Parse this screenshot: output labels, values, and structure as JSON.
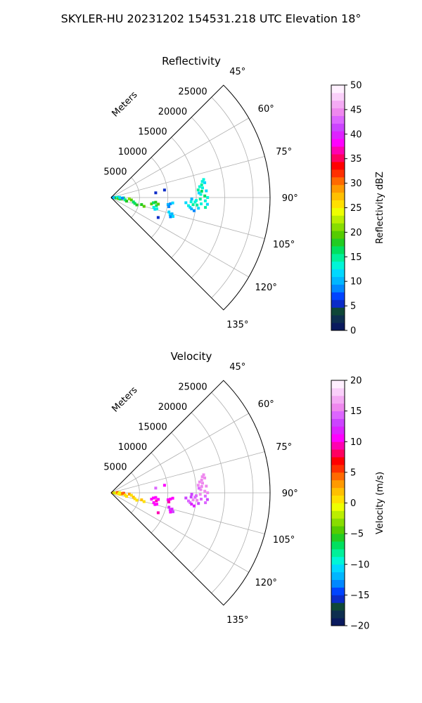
{
  "figure": {
    "suptitle": "SKYLER-HU  20231202  154531.218 UTC Elevation 18°"
  },
  "chart_data": [
    {
      "type": "polar-ppi",
      "title": "Reflectivity",
      "range_label": "Meters",
      "range_ticks": [
        5000,
        10000,
        15000,
        20000,
        25000
      ],
      "range_max": 28000,
      "azimuth_ticks": [
        "45°",
        "60°",
        "75°",
        "90°",
        "105°",
        "120°",
        "135°"
      ],
      "azimuth_range": [
        45,
        135
      ],
      "grid": true,
      "colorbar": {
        "label": "Reflectivity dBZ",
        "min": 0,
        "max": 50,
        "tick_labels": [
          "0",
          "5",
          "10",
          "15",
          "20",
          "25",
          "30",
          "35",
          "40",
          "45",
          "50"
        ],
        "colors": [
          "#0a1a5e",
          "#0e2f4f",
          "#0f4738",
          "#0b2bc8",
          "#0044ff",
          "#0088ff",
          "#00b6ff",
          "#00d8ff",
          "#00f5d8",
          "#00f09a",
          "#00e060",
          "#22cc22",
          "#55cc00",
          "#88dd00",
          "#bbee00",
          "#eeff00",
          "#ffe000",
          "#ffc000",
          "#ff9a00",
          "#ff6a00",
          "#ff3000",
          "#ff0000",
          "#ff0060",
          "#ff00b0",
          "#ff00ff",
          "#dd22ff",
          "#cc44ff",
          "#dd66ff",
          "#ee88ee",
          "#f4aaf4",
          "#fad0fa",
          "#fff0ff"
        ]
      },
      "echoes": [
        {
          "az": 90,
          "r": 300,
          "v": 8
        },
        {
          "az": 88,
          "r": 500,
          "v": 12
        },
        {
          "az": 92,
          "r": 600,
          "v": 10
        },
        {
          "az": 95,
          "r": 900,
          "v": 18
        },
        {
          "az": 87,
          "r": 1100,
          "v": 14
        },
        {
          "az": 98,
          "r": 1300,
          "v": 20
        },
        {
          "az": 100,
          "r": 1600,
          "v": 17
        },
        {
          "az": 96,
          "r": 1900,
          "v": 19
        },
        {
          "az": 92,
          "r": 2200,
          "v": 16
        },
        {
          "az": 99,
          "r": 2500,
          "v": 15
        },
        {
          "az": 103,
          "r": 2800,
          "v": 18
        },
        {
          "az": 94,
          "r": 3200,
          "v": 21
        },
        {
          "az": 97,
          "r": 3600,
          "v": 19
        },
        {
          "az": 101,
          "r": 4000,
          "v": 17
        },
        {
          "az": 104,
          "r": 4300,
          "v": 16
        },
        {
          "az": 106,
          "r": 4700,
          "v": 18
        },
        {
          "az": 93,
          "r": 2000,
          "v": 9
        },
        {
          "az": 89,
          "r": 1500,
          "v": 11
        },
        {
          "az": 103,
          "r": 5500,
          "v": 18
        },
        {
          "az": 105,
          "r": 6000,
          "v": 20
        },
        {
          "az": 99,
          "r": 7200,
          "v": 19
        },
        {
          "az": 97,
          "r": 7500,
          "v": 17
        },
        {
          "az": 96,
          "r": 7900,
          "v": 18
        },
        {
          "az": 100,
          "r": 8100,
          "v": 16
        },
        {
          "az": 98,
          "r": 8400,
          "v": 19
        },
        {
          "az": 103,
          "r": 7700,
          "v": 14
        },
        {
          "az": 105,
          "r": 8000,
          "v": 12
        },
        {
          "az": 104,
          "r": 8300,
          "v": 13
        },
        {
          "az": 84,
          "r": 7900,
          "v": 5
        },
        {
          "az": 97,
          "r": 10100,
          "v": 10
        },
        {
          "az": 96,
          "r": 10500,
          "v": 9
        },
        {
          "az": 95,
          "r": 10900,
          "v": 11
        },
        {
          "az": 99,
          "r": 10300,
          "v": 8
        },
        {
          "az": 104,
          "r": 10500,
          "v": 11
        },
        {
          "az": 106,
          "r": 10800,
          "v": 12
        },
        {
          "az": 105,
          "r": 11100,
          "v": 10
        },
        {
          "az": 108,
          "r": 11000,
          "v": 9
        },
        {
          "az": 107,
          "r": 11400,
          "v": 11
        },
        {
          "az": 82,
          "r": 9500,
          "v": 6
        },
        {
          "az": 113,
          "r": 9000,
          "v": 5
        },
        {
          "az": 94,
          "r": 13200,
          "v": 12
        },
        {
          "az": 96,
          "r": 13700,
          "v": 14
        },
        {
          "az": 93,
          "r": 14100,
          "v": 13
        },
        {
          "az": 95,
          "r": 14500,
          "v": 15
        },
        {
          "az": 97,
          "r": 14000,
          "v": 11
        },
        {
          "az": 98,
          "r": 14300,
          "v": 10
        },
        {
          "az": 93,
          "r": 14800,
          "v": 14
        },
        {
          "az": 95,
          "r": 15200,
          "v": 15
        },
        {
          "az": 97,
          "r": 15500,
          "v": 12
        },
        {
          "az": 92,
          "r": 15000,
          "v": 13
        },
        {
          "az": 91,
          "r": 15700,
          "v": 15
        },
        {
          "az": 94,
          "r": 15900,
          "v": 14
        },
        {
          "az": 88,
          "r": 15800,
          "v": 14
        },
        {
          "az": 86,
          "r": 16000,
          "v": 16
        },
        {
          "az": 84,
          "r": 16200,
          "v": 13
        },
        {
          "az": 82,
          "r": 16100,
          "v": 15
        },
        {
          "az": 80,
          "r": 16300,
          "v": 14
        },
        {
          "az": 87,
          "r": 15500,
          "v": 12
        },
        {
          "az": 85,
          "r": 15400,
          "v": 15
        },
        {
          "az": 83,
          "r": 15700,
          "v": 13
        },
        {
          "az": 89,
          "r": 16500,
          "v": 16
        },
        {
          "az": 92,
          "r": 16600,
          "v": 14
        },
        {
          "az": 90,
          "r": 17000,
          "v": 13
        },
        {
          "az": 81,
          "r": 16700,
          "v": 12
        },
        {
          "az": 96,
          "r": 16700,
          "v": 15
        },
        {
          "az": 94,
          "r": 17000,
          "v": 12
        },
        {
          "az": 99,
          "r": 14800,
          "v": 9
        },
        {
          "az": 91,
          "r": 14200,
          "v": 10
        },
        {
          "az": 86,
          "r": 16800,
          "v": 11
        },
        {
          "az": 79,
          "r": 16600,
          "v": 14
        }
      ]
    },
    {
      "type": "polar-ppi",
      "title": "Velocity",
      "range_label": "Meters",
      "range_ticks": [
        5000,
        10000,
        15000,
        20000,
        25000
      ],
      "range_max": 28000,
      "azimuth_ticks": [
        "45°",
        "60°",
        "75°",
        "90°",
        "105°",
        "120°",
        "135°"
      ],
      "azimuth_range": [
        45,
        135
      ],
      "grid": true,
      "colorbar": {
        "label": "Velocity (m/s)",
        "min": -20,
        "max": 20,
        "tick_labels": [
          "−20",
          "−15",
          "−10",
          "−5",
          "0",
          "5",
          "10",
          "15",
          "20"
        ],
        "colors": [
          "#0a1a5e",
          "#0e2f4f",
          "#0f4738",
          "#0b2bc8",
          "#0044ff",
          "#0088ff",
          "#00b6ff",
          "#00d8ff",
          "#00f5d8",
          "#00f09a",
          "#00e060",
          "#22cc22",
          "#55cc00",
          "#88dd00",
          "#bbee00",
          "#eeff00",
          "#ffe000",
          "#ffc000",
          "#ff9a00",
          "#ff6a00",
          "#ff3000",
          "#ff0000",
          "#ff0060",
          "#ff00b0",
          "#ff00ff",
          "#dd22ff",
          "#cc44ff",
          "#dd66ff",
          "#ee88ee",
          "#f4aaf4",
          "#fad0fa",
          "#fff0ff"
        ]
      },
      "echoes": [
        {
          "az": 90,
          "r": 300,
          "v": 2
        },
        {
          "az": 88,
          "r": 500,
          "v": 3
        },
        {
          "az": 92,
          "r": 600,
          "v": -2
        },
        {
          "az": 95,
          "r": 900,
          "v": 1
        },
        {
          "az": 87,
          "r": 1100,
          "v": 4
        },
        {
          "az": 98,
          "r": 1300,
          "v": 0
        },
        {
          "az": 100,
          "r": 1600,
          "v": 1
        },
        {
          "az": 96,
          "r": 1900,
          "v": 2
        },
        {
          "az": 92,
          "r": 2200,
          "v": 5
        },
        {
          "az": 99,
          "r": 2500,
          "v": 0
        },
        {
          "az": 103,
          "r": 2800,
          "v": 1
        },
        {
          "az": 94,
          "r": 3200,
          "v": 3
        },
        {
          "az": 97,
          "r": 3600,
          "v": 1
        },
        {
          "az": 101,
          "r": 4000,
          "v": 2
        },
        {
          "az": 104,
          "r": 4300,
          "v": 0
        },
        {
          "az": 106,
          "r": 4700,
          "v": 1
        },
        {
          "az": 93,
          "r": 2000,
          "v": 4
        },
        {
          "az": 89,
          "r": 1500,
          "v": -1
        },
        {
          "az": 103,
          "r": 5500,
          "v": 2
        },
        {
          "az": 105,
          "r": 6000,
          "v": 1
        },
        {
          "az": 99,
          "r": 7200,
          "v": 10
        },
        {
          "az": 97,
          "r": 7500,
          "v": 11
        },
        {
          "az": 96,
          "r": 7900,
          "v": 10
        },
        {
          "az": 100,
          "r": 8100,
          "v": 9
        },
        {
          "az": 98,
          "r": 8400,
          "v": 11
        },
        {
          "az": 103,
          "r": 7700,
          "v": 10
        },
        {
          "az": 105,
          "r": 8000,
          "v": 11
        },
        {
          "az": 104,
          "r": 8300,
          "v": 10
        },
        {
          "az": 84,
          "r": 7900,
          "v": 14
        },
        {
          "az": 97,
          "r": 10100,
          "v": 10
        },
        {
          "az": 96,
          "r": 10500,
          "v": 11
        },
        {
          "az": 95,
          "r": 10900,
          "v": 10
        },
        {
          "az": 99,
          "r": 10300,
          "v": 9
        },
        {
          "az": 104,
          "r": 10500,
          "v": 12
        },
        {
          "az": 106,
          "r": 10800,
          "v": 13
        },
        {
          "az": 105,
          "r": 11100,
          "v": 12
        },
        {
          "az": 108,
          "r": 11000,
          "v": 11
        },
        {
          "az": 107,
          "r": 11400,
          "v": 13
        },
        {
          "az": 82,
          "r": 9500,
          "v": 10
        },
        {
          "az": 113,
          "r": 9000,
          "v": 9
        },
        {
          "az": 94,
          "r": 13200,
          "v": 13
        },
        {
          "az": 96,
          "r": 13700,
          "v": 14
        },
        {
          "az": 93,
          "r": 14100,
          "v": 13
        },
        {
          "az": 95,
          "r": 14500,
          "v": 15
        },
        {
          "az": 97,
          "r": 14000,
          "v": 14
        },
        {
          "az": 98,
          "r": 14300,
          "v": 12
        },
        {
          "az": 93,
          "r": 14800,
          "v": 14
        },
        {
          "az": 95,
          "r": 15200,
          "v": 15
        },
        {
          "az": 97,
          "r": 15500,
          "v": 13
        },
        {
          "az": 92,
          "r": 15000,
          "v": 14
        },
        {
          "az": 91,
          "r": 15700,
          "v": 15
        },
        {
          "az": 94,
          "r": 15900,
          "v": 14
        },
        {
          "az": 88,
          "r": 15800,
          "v": 15
        },
        {
          "az": 86,
          "r": 16000,
          "v": 16
        },
        {
          "az": 84,
          "r": 16200,
          "v": 15
        },
        {
          "az": 82,
          "r": 16100,
          "v": 16
        },
        {
          "az": 80,
          "r": 16300,
          "v": 15
        },
        {
          "az": 87,
          "r": 15500,
          "v": 14
        },
        {
          "az": 85,
          "r": 15400,
          "v": 15
        },
        {
          "az": 83,
          "r": 15700,
          "v": 16
        },
        {
          "az": 89,
          "r": 16500,
          "v": 15
        },
        {
          "az": 92,
          "r": 16600,
          "v": 14
        },
        {
          "az": 90,
          "r": 17000,
          "v": 15
        },
        {
          "az": 81,
          "r": 16700,
          "v": 16
        },
        {
          "az": 96,
          "r": 16700,
          "v": 14
        },
        {
          "az": 94,
          "r": 17000,
          "v": 13
        },
        {
          "az": 99,
          "r": 14800,
          "v": 12
        },
        {
          "az": 91,
          "r": 14200,
          "v": 13
        },
        {
          "az": 86,
          "r": 16800,
          "v": 15
        },
        {
          "az": 79,
          "r": 16600,
          "v": 16
        }
      ]
    }
  ]
}
